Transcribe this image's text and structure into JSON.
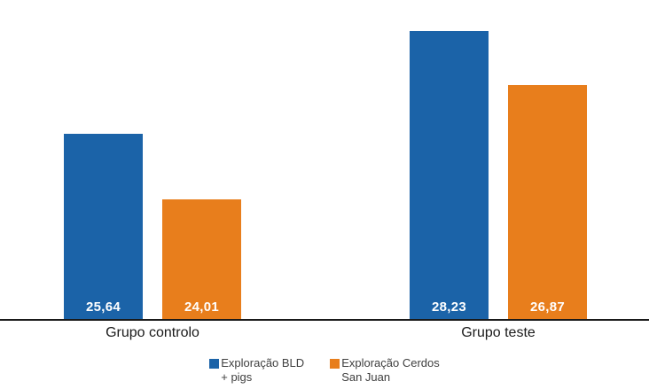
{
  "chart_data": {
    "type": "bar",
    "title": "",
    "xlabel": "",
    "ylabel": "",
    "categories": [
      "Grupo controlo",
      "Grupo teste"
    ],
    "series": [
      {
        "name": "Exploração BLD + pigs",
        "legend_lines": [
          "Exploração BLD",
          "+ pigs"
        ],
        "color": "#1b63a8",
        "values": [
          25.64,
          28.23
        ],
        "value_labels": [
          "25,64",
          "28,23"
        ]
      },
      {
        "name": "Exploração Cerdos San Juan",
        "legend_lines": [
          "Exploração Cerdos",
          "San Juan"
        ],
        "color": "#e87e1c",
        "values": [
          24.01,
          26.87
        ],
        "value_labels": [
          "24,01",
          "26,87"
        ]
      }
    ],
    "ylim": [
      21,
      29
    ],
    "grid": false,
    "y_axis_labels_visible": false,
    "legend_position": "bottom",
    "value_label_color": "#ffffff",
    "axis_line_color": "#1a1a1a",
    "category_label_color": "#1a1a1a",
    "legend_text_color": "#404040"
  }
}
